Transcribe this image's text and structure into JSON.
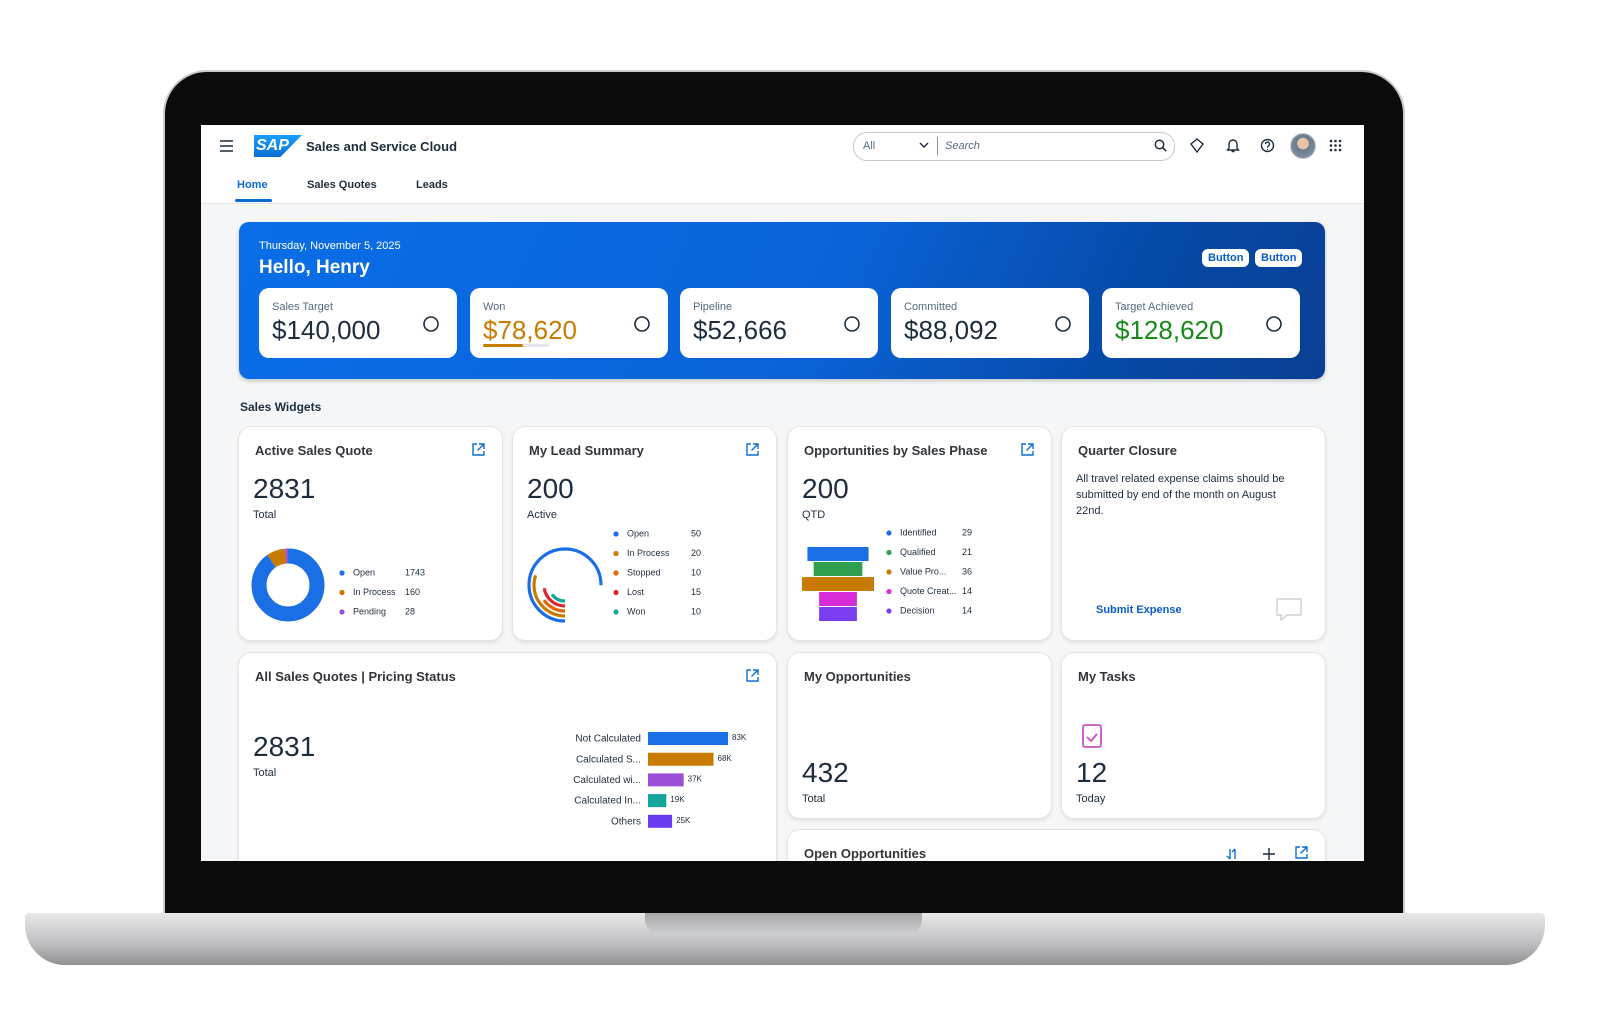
{
  "app": {
    "logo": "SAP",
    "title": "Sales and Service Cloud",
    "search_scope": "All",
    "search_placeholder": "Search"
  },
  "tabs": [
    "Home",
    "Sales Quotes",
    "Leads"
  ],
  "banner": {
    "date": "Thursday, November 5, 2025",
    "greeting": "Hello, Henry",
    "buttons": [
      "Button",
      "Button"
    ],
    "kpis": [
      {
        "label": "Sales Target",
        "value": "$140,000",
        "color": "#1d2d3e"
      },
      {
        "label": "Won",
        "value": "$78,620",
        "color": "#c87b00"
      },
      {
        "label": "Pipeline",
        "value": "$52,666",
        "color": "#1d2d3e"
      },
      {
        "label": "Committed",
        "value": "$88,092",
        "color": "#1d2d3e"
      },
      {
        "label": "Target Achieved",
        "value": "$128,620",
        "color": "#188918"
      }
    ]
  },
  "section_title": "Sales Widgets",
  "widgets": [
    {
      "title": "Active Sales Quote",
      "count": 2831,
      "count_label": "Total",
      "chart": {
        "type": "donut",
        "categories": [
          "Open",
          "In Process",
          "Pending"
        ],
        "values": [
          1743,
          160,
          28
        ],
        "colors": [
          "#1b6fe5",
          "#c87b00",
          "#9b4fd6"
        ]
      }
    },
    {
      "title": "My Lead Summary",
      "count": 200,
      "count_label": "Active",
      "chart": {
        "type": "radial",
        "categories": [
          "Open",
          "In Process",
          "Stopped",
          "Lost",
          "Won"
        ],
        "values": [
          50,
          20,
          10,
          15,
          10
        ],
        "colors": [
          "#1b6fe5",
          "#c87b00",
          "#e76500",
          "#e0242e",
          "#12a59a"
        ]
      }
    },
    {
      "title": "Opportunities by Sales Phase",
      "count": 200,
      "count_label": "QTD",
      "chart": {
        "type": "funnel",
        "categories": [
          "Identified",
          "Qualified",
          "Value Pro...",
          "Quote Creat...",
          "Decision"
        ],
        "values": [
          29,
          21,
          36,
          14,
          14
        ],
        "colors": [
          "#1b6fe5",
          "#2e9e4f",
          "#c87b00",
          "#d62dd6",
          "#7a3df0"
        ]
      }
    },
    {
      "title": "Quarter Closure",
      "text": "All travel related expense claims should be submitted by end of the month on August 22nd.",
      "link": "Submit Expense"
    },
    {
      "title": "All Sales Quotes | Pricing Status",
      "count": 2831,
      "count_label": "Total",
      "chart": {
        "type": "hbar",
        "categories": [
          "Not Calculated",
          "Calculated S...",
          "Calculated wi...",
          "Calculated In...",
          "Others"
        ],
        "values": [
          83000,
          68000,
          37000,
          19000,
          25000
        ],
        "value_labels": [
          "83K",
          "68K",
          "37K",
          "19K",
          "25K"
        ],
        "colors": [
          "#1b6fe5",
          "#c87b00",
          "#9b4fd6",
          "#12a59a",
          "#6a3cf0"
        ]
      }
    },
    {
      "title": "My Opportunities",
      "count": 432,
      "count_label": "Total"
    },
    {
      "title": "My Tasks",
      "count": 12,
      "count_label": "Today"
    },
    {
      "title": "Open Opportunities"
    }
  ]
}
